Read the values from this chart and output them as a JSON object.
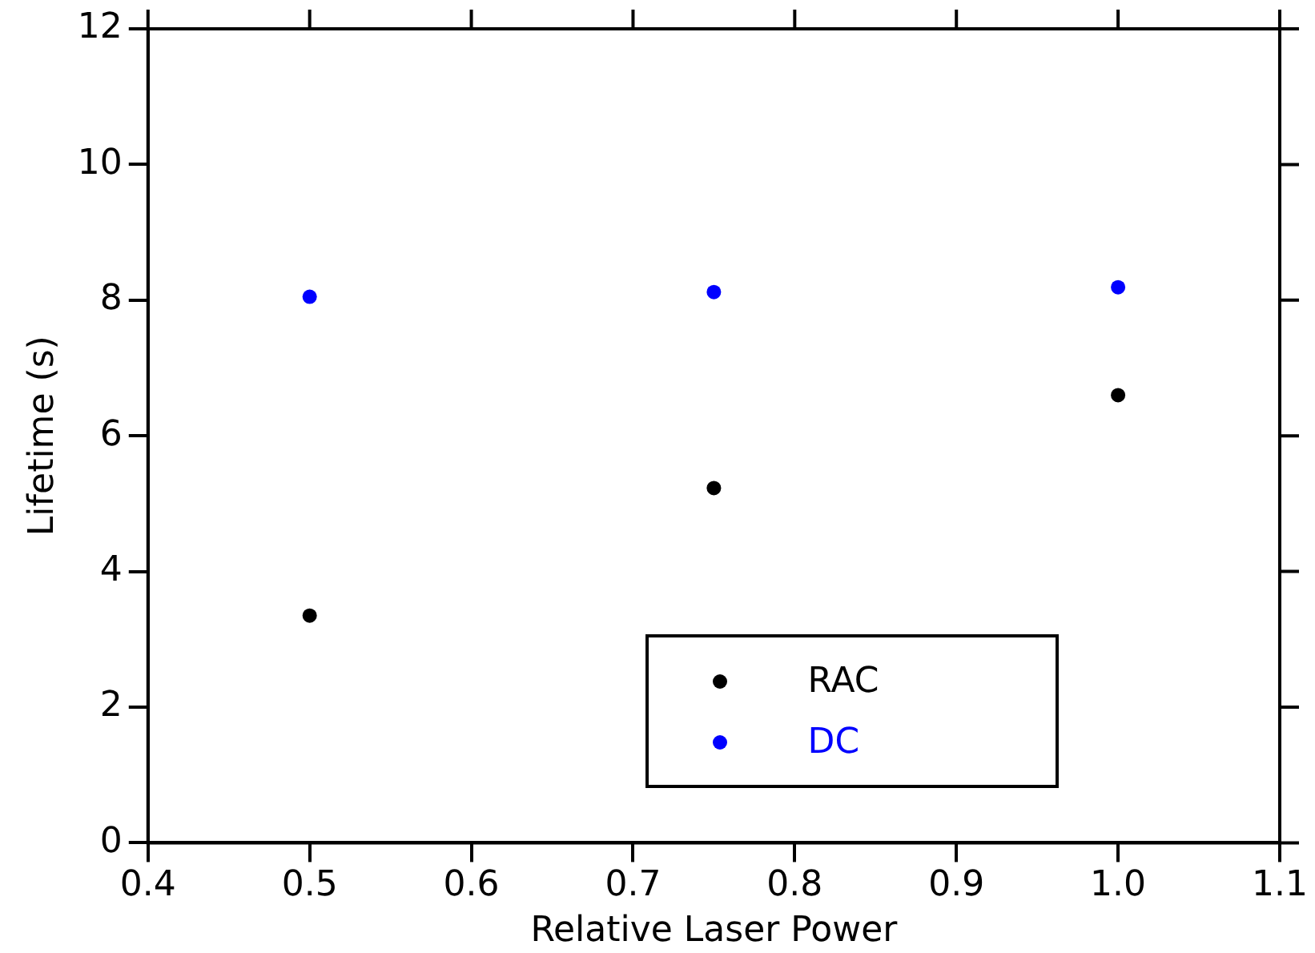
{
  "chart_data": {
    "type": "scatter",
    "xlabel": "Relative Laser Power",
    "ylabel": "Lifetime (s)",
    "x": [
      0.5,
      0.75,
      1.0
    ],
    "series": [
      {
        "name": "RAC",
        "color": "#000000",
        "values": [
          3.35,
          5.23,
          6.6
        ]
      },
      {
        "name": "DC",
        "color": "#0000ff",
        "values": [
          8.05,
          8.12,
          8.19
        ]
      }
    ],
    "xlim": [
      0.4,
      1.1
    ],
    "xticks": [
      {
        "value": 0.4,
        "label": "0.4"
      },
      {
        "value": 0.5,
        "label": "0.5"
      },
      {
        "value": 0.6,
        "label": "0.6"
      },
      {
        "value": 0.7,
        "label": "0.7"
      },
      {
        "value": 0.8,
        "label": "0.8"
      },
      {
        "value": 0.9,
        "label": "0.9"
      },
      {
        "value": 1.0,
        "label": "1.0"
      },
      {
        "value": 1.1,
        "label": "1.1"
      }
    ],
    "ylim": [
      0,
      12
    ],
    "yticks": [
      0,
      2,
      4,
      6,
      8,
      10,
      12
    ],
    "grid": false,
    "legend": "bottom right",
    "marker": "circle"
  }
}
